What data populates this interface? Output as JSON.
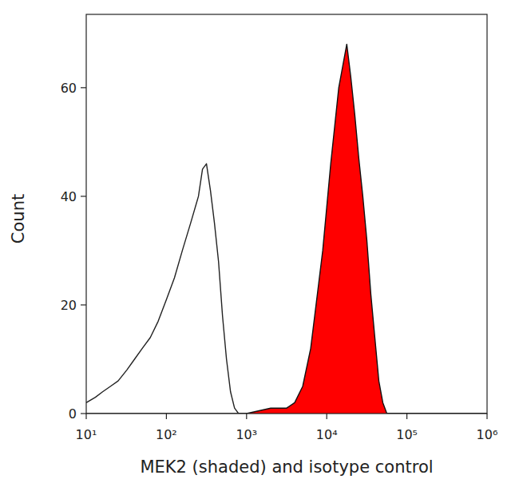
{
  "chart_data": {
    "type": "line",
    "x_label": "MEK2 (shaded) and isotype control",
    "y_label": "Count",
    "log": "x",
    "grid": false,
    "xlim": [
      10,
      1000000
    ],
    "ylim": [
      0,
      73.5
    ],
    "xticks": [
      {
        "value": 10,
        "label": "10¹"
      },
      {
        "value": 100,
        "label": "10²"
      },
      {
        "value": 1000,
        "label": "10³"
      },
      {
        "value": 10000,
        "label": "10⁴"
      },
      {
        "value": 100000,
        "label": "10⁵"
      },
      {
        "value": 1000000,
        "label": "10⁶"
      }
    ],
    "yticks": [
      0,
      20,
      40,
      60
    ],
    "series": [
      {
        "type": "line",
        "color": "#222222",
        "x": [
          10,
          13,
          16,
          20,
          25,
          32,
          40,
          50,
          63,
          79,
          100,
          126,
          158,
          200,
          251,
          282,
          316,
          355,
          398,
          447,
          501,
          562,
          631,
          708,
          794,
          1000,
          10000,
          100000,
          1000000
        ],
        "values": [
          2,
          3,
          4,
          5,
          6,
          8,
          10,
          12,
          14,
          17,
          21,
          25,
          30,
          35,
          40,
          45,
          46,
          41,
          35,
          28,
          18,
          10,
          4,
          1,
          0,
          0,
          0,
          0,
          0
        ]
      },
      {
        "type": "area",
        "color": "#ff0000",
        "x": [
          10,
          1000,
          2000,
          3162,
          3981,
          5012,
          6310,
          7079,
          7943,
          8913,
          10000,
          11220,
          12589,
          14125,
          15849,
          17783,
          19953,
          22387,
          25119,
          28184,
          31623,
          35481,
          39811,
          44668,
          50119,
          56234,
          100000,
          1000000
        ],
        "values": [
          0,
          0,
          1,
          1,
          2,
          5,
          12,
          18,
          24,
          30,
          38,
          46,
          53,
          60,
          64,
          68,
          62,
          55,
          47,
          40,
          32,
          22,
          14,
          6,
          2,
          0,
          0,
          0
        ]
      }
    ]
  }
}
